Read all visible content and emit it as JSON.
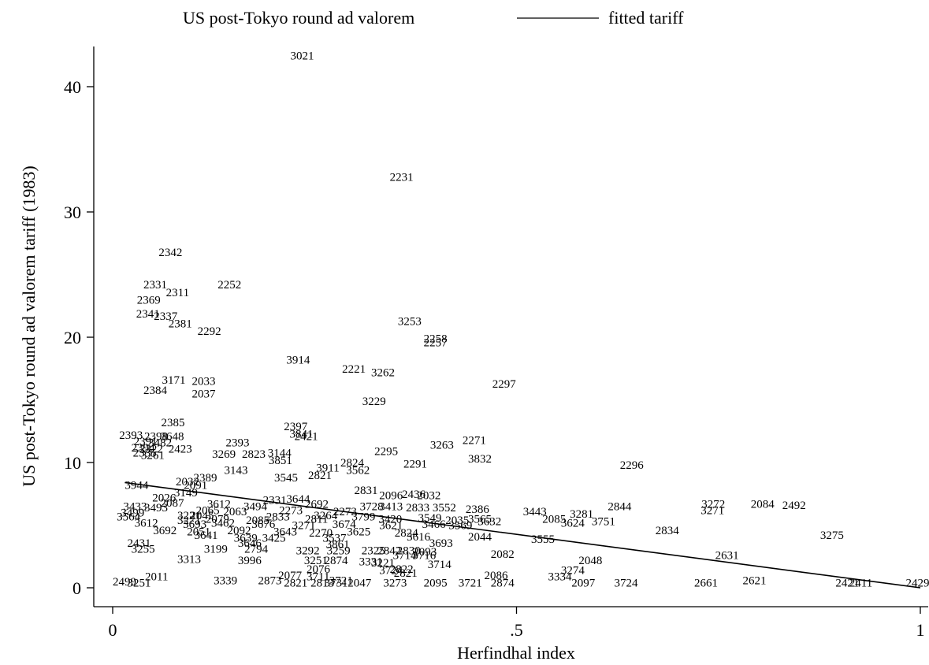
{
  "chart_data": {
    "type": "scatter",
    "title": "",
    "xlabel": "Herfindhal index",
    "ylabel": "US post-Tokyo round ad valorem tariff (1983)",
    "xlim": [
      0,
      1
    ],
    "ylim": [
      0,
      45
    ],
    "x_ticks": [
      {
        "value": 0,
        "label": "0"
      },
      {
        "value": 0.5,
        "label": ".5"
      },
      {
        "value": 1,
        "label": "1"
      }
    ],
    "y_ticks": [
      {
        "value": 0,
        "label": "0"
      },
      {
        "value": 10,
        "label": "10"
      },
      {
        "value": 20,
        "label": "20"
      },
      {
        "value": 30,
        "label": "30"
      },
      {
        "value": 40,
        "label": "40"
      }
    ],
    "grid": false,
    "legend": {
      "placement": "top",
      "entries": [
        {
          "label": "US post-Tokyo round ad valorem",
          "marker": "label"
        },
        {
          "label": "fitted tariff",
          "marker": "line"
        }
      ]
    },
    "fitted_line": {
      "x": [
        0.015,
        1.0
      ],
      "y": [
        8.4,
        0.0
      ]
    },
    "series": [
      {
        "name": "US post-Tokyo round ad valorem",
        "marker": "code-label",
        "points": [
          {
            "x": 0.22,
            "y": 42.5,
            "label": "3021"
          },
          {
            "x": 0.343,
            "y": 32.8,
            "label": "2231"
          },
          {
            "x": 0.057,
            "y": 26.8,
            "label": "2342"
          },
          {
            "x": 0.038,
            "y": 24.2,
            "label": "2331"
          },
          {
            "x": 0.13,
            "y": 24.2,
            "label": "2252"
          },
          {
            "x": 0.066,
            "y": 23.6,
            "label": "2311"
          },
          {
            "x": 0.03,
            "y": 23.0,
            "label": "2369"
          },
          {
            "x": 0.029,
            "y": 21.9,
            "label": "2341"
          },
          {
            "x": 0.051,
            "y": 21.7,
            "label": "2337"
          },
          {
            "x": 0.069,
            "y": 21.1,
            "label": "2381"
          },
          {
            "x": 0.105,
            "y": 20.5,
            "label": "2292"
          },
          {
            "x": 0.353,
            "y": 21.3,
            "label": "3253"
          },
          {
            "x": 0.385,
            "y": 19.9,
            "label": "2258"
          },
          {
            "x": 0.385,
            "y": 19.6,
            "label": "2257"
          },
          {
            "x": 0.215,
            "y": 18.2,
            "label": "3914"
          },
          {
            "x": 0.284,
            "y": 17.5,
            "label": "2221"
          },
          {
            "x": 0.32,
            "y": 17.2,
            "label": "3262"
          },
          {
            "x": 0.061,
            "y": 16.6,
            "label": "3171"
          },
          {
            "x": 0.098,
            "y": 16.5,
            "label": "2033"
          },
          {
            "x": 0.47,
            "y": 16.3,
            "label": "2297"
          },
          {
            "x": 0.038,
            "y": 15.8,
            "label": "2384"
          },
          {
            "x": 0.098,
            "y": 15.5,
            "label": "2037"
          },
          {
            "x": 0.309,
            "y": 14.9,
            "label": "3229"
          },
          {
            "x": 0.06,
            "y": 13.2,
            "label": "2385"
          },
          {
            "x": 0.212,
            "y": 12.9,
            "label": "2397"
          },
          {
            "x": 0.219,
            "y": 12.3,
            "label": "3841"
          },
          {
            "x": 0.225,
            "y": 12.1,
            "label": "2421"
          },
          {
            "x": 0.008,
            "y": 12.2,
            "label": "2393"
          },
          {
            "x": 0.039,
            "y": 12.1,
            "label": "2398"
          },
          {
            "x": 0.059,
            "y": 12.1,
            "label": "3648"
          },
          {
            "x": 0.026,
            "y": 11.7,
            "label": "2391"
          },
          {
            "x": 0.044,
            "y": 11.6,
            "label": "3482"
          },
          {
            "x": 0.14,
            "y": 11.6,
            "label": "2393"
          },
          {
            "x": 0.433,
            "y": 11.8,
            "label": "2271"
          },
          {
            "x": 0.393,
            "y": 11.4,
            "label": "3263"
          },
          {
            "x": 0.023,
            "y": 11.2,
            "label": "2394"
          },
          {
            "x": 0.033,
            "y": 11.1,
            "label": "2322"
          },
          {
            "x": 0.069,
            "y": 11.1,
            "label": "2423"
          },
          {
            "x": 0.025,
            "y": 10.8,
            "label": "2335"
          },
          {
            "x": 0.035,
            "y": 10.6,
            "label": "3261"
          },
          {
            "x": 0.324,
            "y": 10.9,
            "label": "2295"
          },
          {
            "x": 0.123,
            "y": 10.7,
            "label": "3269"
          },
          {
            "x": 0.16,
            "y": 10.7,
            "label": "2823"
          },
          {
            "x": 0.192,
            "y": 10.8,
            "label": "3144"
          },
          {
            "x": 0.44,
            "y": 10.3,
            "label": "3832"
          },
          {
            "x": 0.193,
            "y": 10.2,
            "label": "3851"
          },
          {
            "x": 0.282,
            "y": 10.0,
            "label": "2824"
          },
          {
            "x": 0.36,
            "y": 9.9,
            "label": "2291"
          },
          {
            "x": 0.252,
            "y": 9.6,
            "label": "3911"
          },
          {
            "x": 0.628,
            "y": 9.8,
            "label": "2296"
          },
          {
            "x": 0.138,
            "y": 9.4,
            "label": "3143"
          },
          {
            "x": 0.289,
            "y": 9.4,
            "label": "3562"
          },
          {
            "x": 0.242,
            "y": 9.0,
            "label": "2821"
          },
          {
            "x": 0.1,
            "y": 8.8,
            "label": "2389"
          },
          {
            "x": 0.2,
            "y": 8.8,
            "label": "3545"
          },
          {
            "x": 0.078,
            "y": 8.5,
            "label": "2032"
          },
          {
            "x": 0.088,
            "y": 8.2,
            "label": "2091"
          },
          {
            "x": 0.015,
            "y": 8.2,
            "label": "3944"
          },
          {
            "x": 0.076,
            "y": 7.6,
            "label": "3149"
          },
          {
            "x": 0.299,
            "y": 7.8,
            "label": "2831"
          },
          {
            "x": 0.33,
            "y": 7.4,
            "label": "2096"
          },
          {
            "x": 0.358,
            "y": 7.5,
            "label": "2436"
          },
          {
            "x": 0.377,
            "y": 7.4,
            "label": "2032"
          },
          {
            "x": 0.049,
            "y": 7.2,
            "label": "2026"
          },
          {
            "x": 0.215,
            "y": 7.1,
            "label": "3644"
          },
          {
            "x": 0.186,
            "y": 7.0,
            "label": "2331"
          },
          {
            "x": 0.059,
            "y": 6.8,
            "label": "2087"
          },
          {
            "x": 0.117,
            "y": 6.7,
            "label": "3612"
          },
          {
            "x": 0.238,
            "y": 6.7,
            "label": "2692"
          },
          {
            "x": 0.162,
            "y": 6.5,
            "label": "3494"
          },
          {
            "x": 0.306,
            "y": 6.5,
            "label": "3728"
          },
          {
            "x": 0.33,
            "y": 6.5,
            "label": "3413"
          },
          {
            "x": 0.363,
            "y": 6.4,
            "label": "2833"
          },
          {
            "x": 0.396,
            "y": 6.4,
            "label": "3552"
          },
          {
            "x": 0.437,
            "y": 6.3,
            "label": "2386"
          },
          {
            "x": 0.013,
            "y": 6.5,
            "label": "3433"
          },
          {
            "x": 0.039,
            "y": 6.4,
            "label": "3493"
          },
          {
            "x": 0.103,
            "y": 6.2,
            "label": "2065"
          },
          {
            "x": 0.137,
            "y": 6.1,
            "label": "2063"
          },
          {
            "x": 0.206,
            "y": 6.2,
            "label": "2273"
          },
          {
            "x": 0.273,
            "y": 6.1,
            "label": "2273"
          },
          {
            "x": 0.613,
            "y": 6.5,
            "label": "2844"
          },
          {
            "x": 0.729,
            "y": 6.7,
            "label": "3272"
          },
          {
            "x": 0.79,
            "y": 6.7,
            "label": "2084"
          },
          {
            "x": 0.829,
            "y": 6.6,
            "label": "2492"
          },
          {
            "x": 0.728,
            "y": 6.2,
            "label": "3271"
          },
          {
            "x": 0.01,
            "y": 6.0,
            "label": "3499"
          },
          {
            "x": 0.08,
            "y": 5.8,
            "label": "3221"
          },
          {
            "x": 0.096,
            "y": 5.8,
            "label": "2045"
          },
          {
            "x": 0.19,
            "y": 5.7,
            "label": "2833"
          },
          {
            "x": 0.249,
            "y": 5.8,
            "label": "3264"
          },
          {
            "x": 0.296,
            "y": 5.7,
            "label": "3799"
          },
          {
            "x": 0.508,
            "y": 6.1,
            "label": "3443"
          },
          {
            "x": 0.566,
            "y": 5.9,
            "label": "3281"
          },
          {
            "x": 0.005,
            "y": 5.7,
            "label": "3564"
          },
          {
            "x": 0.08,
            "y": 5.4,
            "label": "3271"
          },
          {
            "x": 0.115,
            "y": 5.5,
            "label": "2079"
          },
          {
            "x": 0.165,
            "y": 5.4,
            "label": "2085"
          },
          {
            "x": 0.238,
            "y": 5.5,
            "label": "2811"
          },
          {
            "x": 0.329,
            "y": 5.5,
            "label": "3420"
          },
          {
            "x": 0.378,
            "y": 5.6,
            "label": "3549"
          },
          {
            "x": 0.412,
            "y": 5.4,
            "label": "2035"
          },
          {
            "x": 0.44,
            "y": 5.5,
            "label": "3565"
          },
          {
            "x": 0.452,
            "y": 5.3,
            "label": "3632"
          },
          {
            "x": 0.532,
            "y": 5.5,
            "label": "2085"
          },
          {
            "x": 0.555,
            "y": 5.2,
            "label": "3624"
          },
          {
            "x": 0.027,
            "y": 5.2,
            "label": "3612"
          },
          {
            "x": 0.087,
            "y": 5.1,
            "label": "3693"
          },
          {
            "x": 0.122,
            "y": 5.2,
            "label": "3462"
          },
          {
            "x": 0.172,
            "y": 5.1,
            "label": "3676"
          },
          {
            "x": 0.222,
            "y": 5.0,
            "label": "3271"
          },
          {
            "x": 0.272,
            "y": 5.1,
            "label": "3674"
          },
          {
            "x": 0.33,
            "y": 5.0,
            "label": "3621"
          },
          {
            "x": 0.383,
            "y": 5.1,
            "label": "3466"
          },
          {
            "x": 0.416,
            "y": 5.0,
            "label": "3569"
          },
          {
            "x": 0.593,
            "y": 5.3,
            "label": "3751"
          },
          {
            "x": 0.672,
            "y": 4.6,
            "label": "2834"
          },
          {
            "x": 0.05,
            "y": 4.6,
            "label": "3692"
          },
          {
            "x": 0.092,
            "y": 4.5,
            "label": "2051"
          },
          {
            "x": 0.142,
            "y": 4.6,
            "label": "2092"
          },
          {
            "x": 0.199,
            "y": 4.5,
            "label": "3643"
          },
          {
            "x": 0.243,
            "y": 4.4,
            "label": "2270"
          },
          {
            "x": 0.29,
            "y": 4.5,
            "label": "3625"
          },
          {
            "x": 0.349,
            "y": 4.4,
            "label": "2824"
          },
          {
            "x": 0.44,
            "y": 4.1,
            "label": "2044"
          },
          {
            "x": 0.364,
            "y": 4.1,
            "label": "3616"
          },
          {
            "x": 0.876,
            "y": 4.2,
            "label": "3275"
          },
          {
            "x": 0.101,
            "y": 4.2,
            "label": "3641"
          },
          {
            "x": 0.15,
            "y": 4.0,
            "label": "3639"
          },
          {
            "x": 0.185,
            "y": 4.0,
            "label": "3425"
          },
          {
            "x": 0.26,
            "y": 4.0,
            "label": "3537"
          },
          {
            "x": 0.518,
            "y": 3.9,
            "label": "3555"
          },
          {
            "x": 0.018,
            "y": 3.6,
            "label": "2431"
          },
          {
            "x": 0.155,
            "y": 3.6,
            "label": "3646"
          },
          {
            "x": 0.264,
            "y": 3.5,
            "label": "3861"
          },
          {
            "x": 0.392,
            "y": 3.6,
            "label": "3693"
          },
          {
            "x": 0.023,
            "y": 3.1,
            "label": "3255"
          },
          {
            "x": 0.113,
            "y": 3.1,
            "label": "3199"
          },
          {
            "x": 0.163,
            "y": 3.1,
            "label": "2794"
          },
          {
            "x": 0.227,
            "y": 3.0,
            "label": "3292"
          },
          {
            "x": 0.265,
            "y": 3.0,
            "label": "3259"
          },
          {
            "x": 0.308,
            "y": 3.0,
            "label": "2325"
          },
          {
            "x": 0.328,
            "y": 3.0,
            "label": "2842"
          },
          {
            "x": 0.352,
            "y": 3.0,
            "label": "2830"
          },
          {
            "x": 0.372,
            "y": 2.9,
            "label": "2093"
          },
          {
            "x": 0.347,
            "y": 2.6,
            "label": "3714"
          },
          {
            "x": 0.371,
            "y": 2.6,
            "label": "3716"
          },
          {
            "x": 0.468,
            "y": 2.7,
            "label": "2082"
          },
          {
            "x": 0.08,
            "y": 2.3,
            "label": "3313"
          },
          {
            "x": 0.155,
            "y": 2.2,
            "label": "3996"
          },
          {
            "x": 0.237,
            "y": 2.2,
            "label": "3251"
          },
          {
            "x": 0.262,
            "y": 2.2,
            "label": "2874"
          },
          {
            "x": 0.305,
            "y": 2.1,
            "label": "3331"
          },
          {
            "x": 0.32,
            "y": 2.0,
            "label": "3221"
          },
          {
            "x": 0.39,
            "y": 1.9,
            "label": "3714"
          },
          {
            "x": 0.577,
            "y": 2.2,
            "label": "2048"
          },
          {
            "x": 0.746,
            "y": 2.6,
            "label": "2631"
          },
          {
            "x": 0.24,
            "y": 1.5,
            "label": "2076"
          },
          {
            "x": 0.33,
            "y": 1.4,
            "label": "3724"
          },
          {
            "x": 0.343,
            "y": 1.5,
            "label": "2822"
          },
          {
            "x": 0.348,
            "y": 1.2,
            "label": "2821"
          },
          {
            "x": 0.555,
            "y": 1.4,
            "label": "3274"
          },
          {
            "x": 0.46,
            "y": 1.0,
            "label": "2086"
          },
          {
            "x": 0.539,
            "y": 0.9,
            "label": "3334"
          },
          {
            "x": 0.04,
            "y": 0.9,
            "label": "2011"
          },
          {
            "x": 0.125,
            "y": 0.6,
            "label": "3339"
          },
          {
            "x": 0.18,
            "y": 0.6,
            "label": "2873"
          },
          {
            "x": 0.205,
            "y": 1.0,
            "label": "2077"
          },
          {
            "x": 0.24,
            "y": 0.9,
            "label": "3711"
          },
          {
            "x": 0.268,
            "y": 0.6,
            "label": "3721"
          },
          {
            "x": 0.0,
            "y": 0.5,
            "label": "2499"
          },
          {
            "x": 0.018,
            "y": 0.4,
            "label": "3251"
          },
          {
            "x": 0.212,
            "y": 0.4,
            "label": "2821"
          },
          {
            "x": 0.245,
            "y": 0.4,
            "label": "2813"
          },
          {
            "x": 0.262,
            "y": 0.4,
            "label": "3731"
          },
          {
            "x": 0.291,
            "y": 0.4,
            "label": "2047"
          },
          {
            "x": 0.335,
            "y": 0.4,
            "label": "3273"
          },
          {
            "x": 0.385,
            "y": 0.4,
            "label": "2095"
          },
          {
            "x": 0.428,
            "y": 0.4,
            "label": "3721"
          },
          {
            "x": 0.468,
            "y": 0.4,
            "label": "2874"
          },
          {
            "x": 0.568,
            "y": 0.4,
            "label": "2097"
          },
          {
            "x": 0.621,
            "y": 0.4,
            "label": "3724"
          },
          {
            "x": 0.72,
            "y": 0.4,
            "label": "2661"
          },
          {
            "x": 0.78,
            "y": 0.6,
            "label": "2621"
          },
          {
            "x": 0.895,
            "y": 0.4,
            "label": "2421"
          },
          {
            "x": 0.912,
            "y": 0.4,
            "label": "2411"
          },
          {
            "x": 0.982,
            "y": 0.4,
            "label": "2429"
          }
        ]
      }
    ]
  }
}
